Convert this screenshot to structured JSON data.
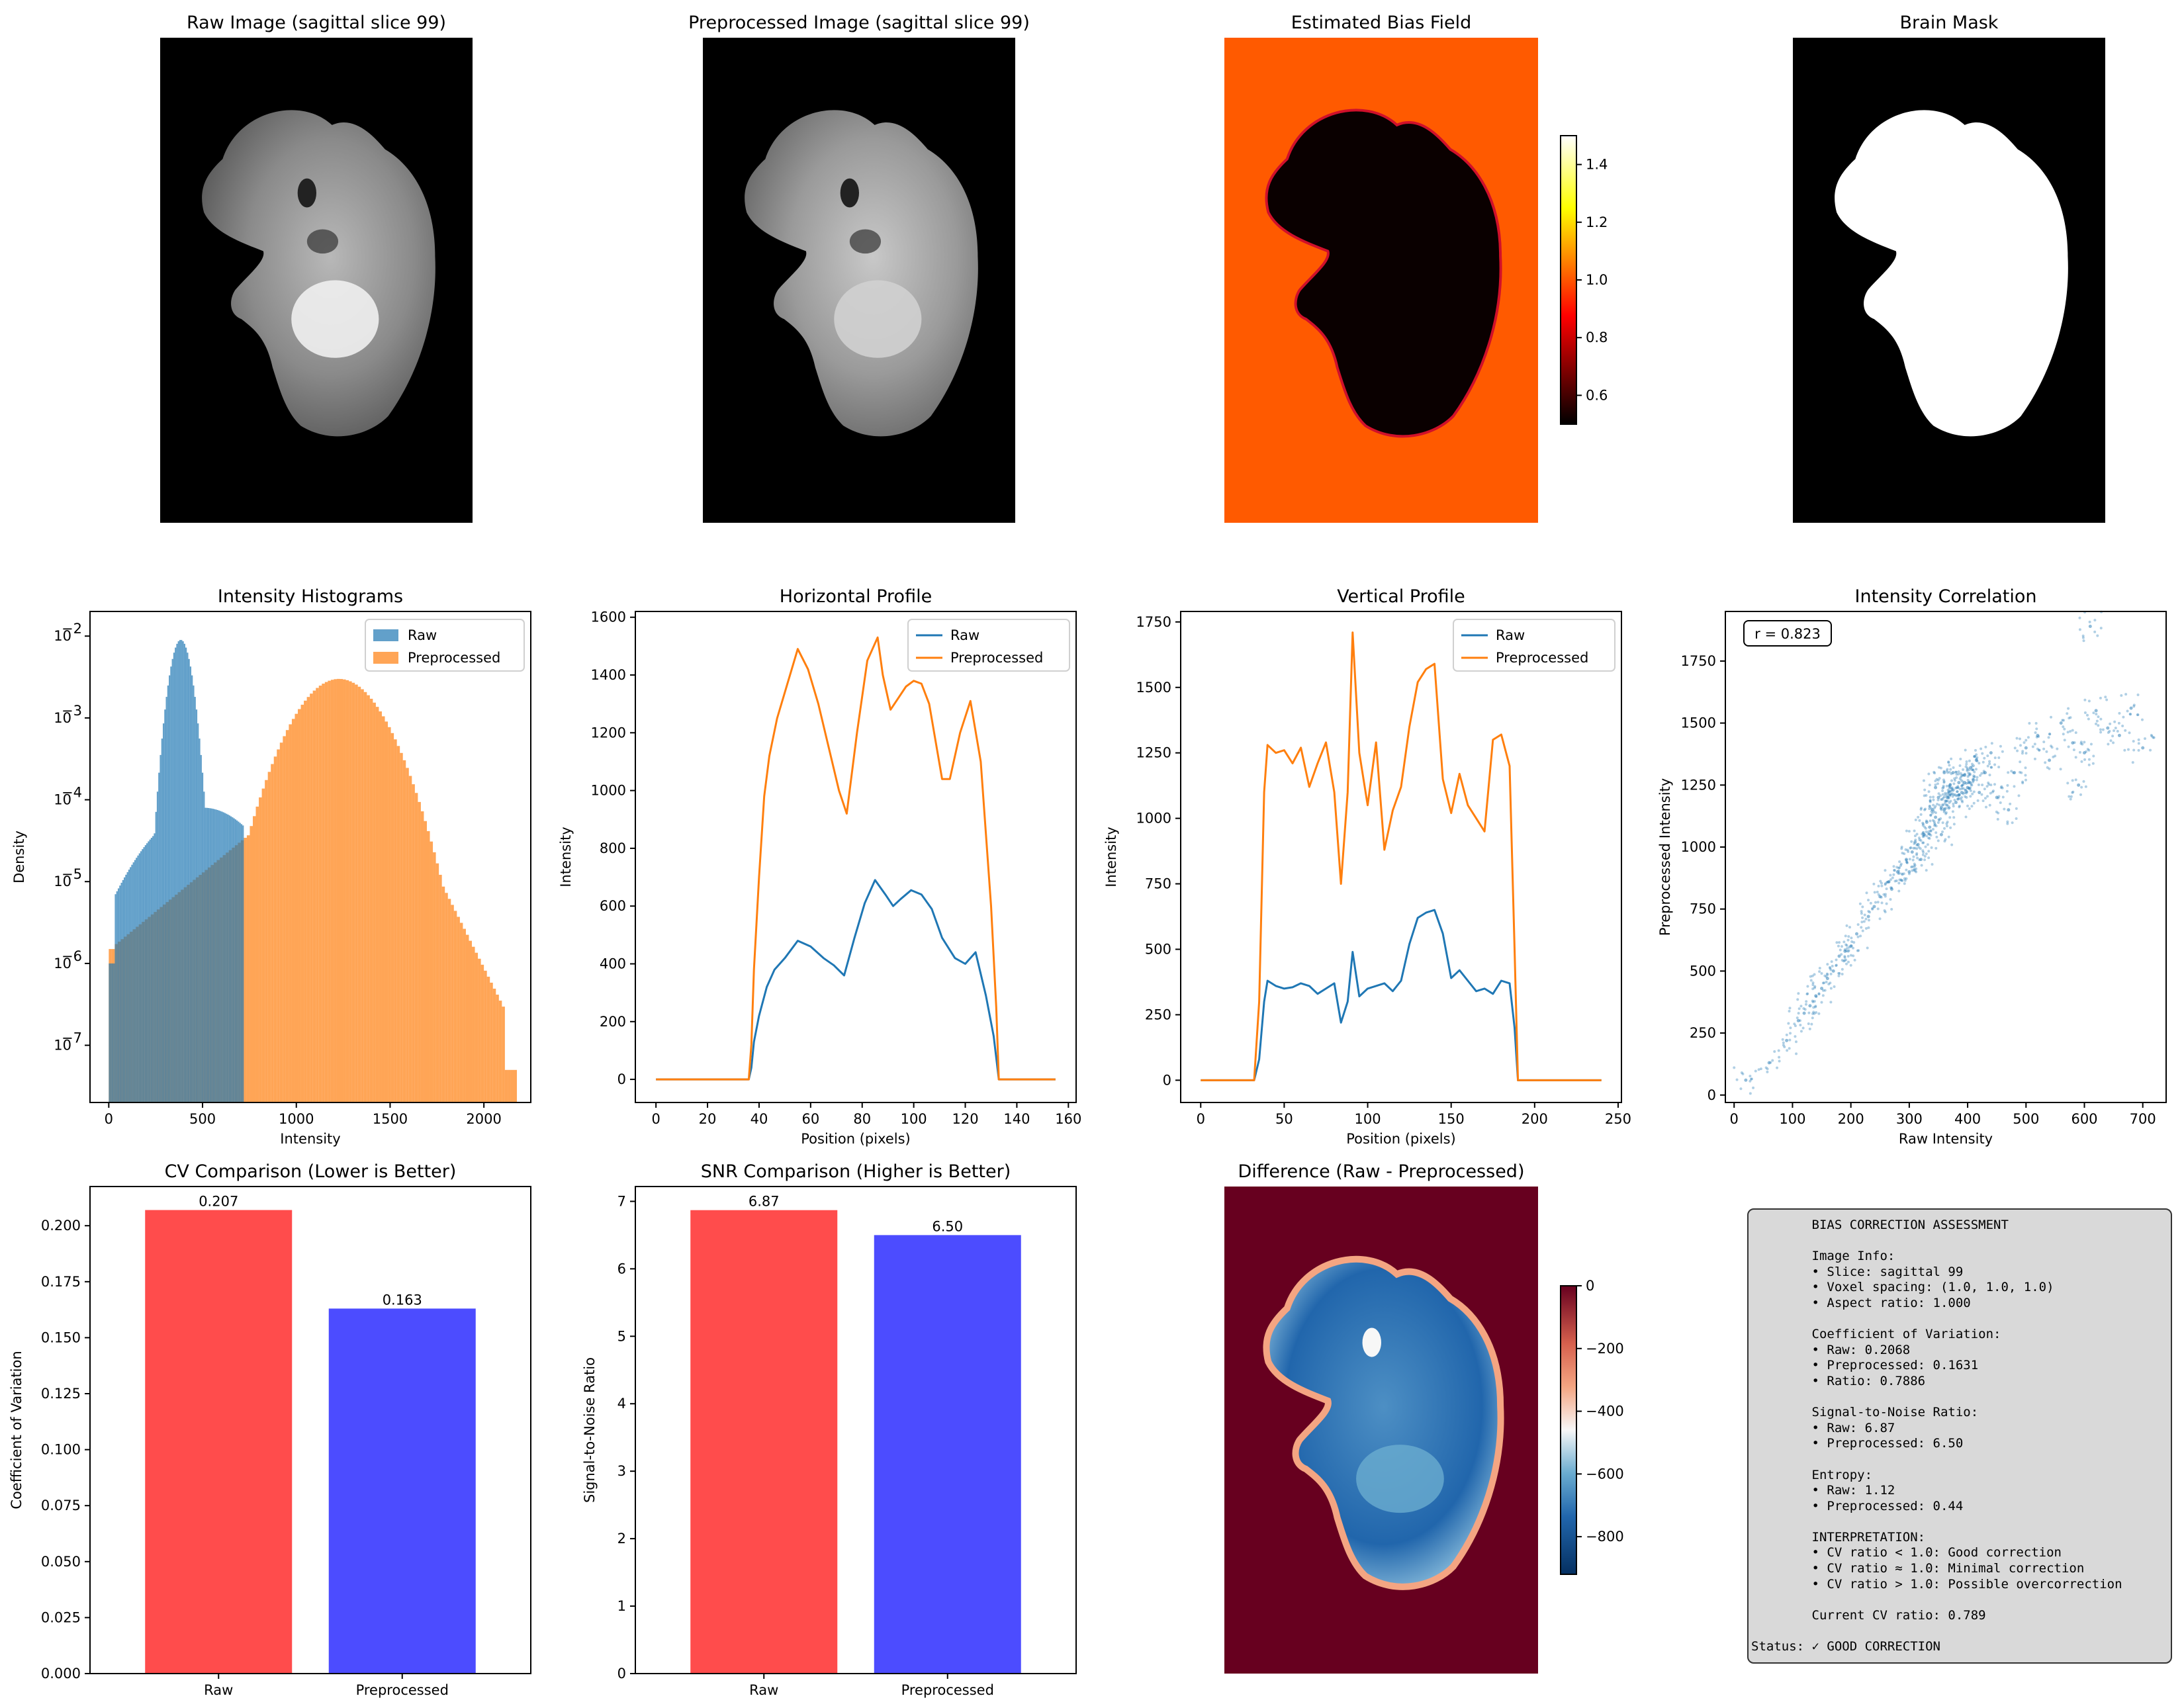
{
  "chart_data": [
    {
      "id": "raw-image",
      "type": "image",
      "title": "Raw Image (sagittal slice 99)"
    },
    {
      "id": "preprocessed-image",
      "type": "image",
      "title": "Preprocessed Image (sagittal slice 99)"
    },
    {
      "id": "bias-field",
      "type": "heatmap",
      "title": "Estimated Bias Field",
      "colormap": "hot",
      "colorbar": {
        "range": [
          0.5,
          1.5
        ],
        "ticks": [
          "0.6",
          "0.8",
          "1.0",
          "1.2",
          "1.4"
        ]
      }
    },
    {
      "id": "brain-mask",
      "type": "image",
      "title": "Brain Mask"
    },
    {
      "id": "histograms",
      "type": "histogram",
      "title": "Intensity Histograms",
      "xlabel": "Intensity",
      "ylabel": "Density",
      "yscale": "log",
      "xlim": [
        -100,
        2250
      ],
      "ylim": [
        2e-08,
        0.02
      ],
      "xticks": [
        "0",
        "500",
        "1000",
        "1500",
        "2000"
      ],
      "yticks": [
        "10",
        "10",
        "10",
        "10",
        "10",
        "10"
      ],
      "ytick_exponents": [
        "−7",
        "−6",
        "−5",
        "−4",
        "−3",
        "−2"
      ],
      "legend": "upper right",
      "series": [
        {
          "name": "Raw",
          "color": "#1f77b4",
          "range": [
            0,
            720
          ],
          "peak_x": 380,
          "peak_density": 0.009
        },
        {
          "name": "Preprocessed",
          "color": "#ff7f0e",
          "range": [
            0,
            2170
          ],
          "peak_x": 1220,
          "peak_density": 0.003
        }
      ]
    },
    {
      "id": "horizontal-profile",
      "type": "line",
      "title": "Horizontal Profile",
      "xlabel": "Position (pixels)",
      "ylabel": "Intensity",
      "xlim": [
        -8,
        163
      ],
      "ylim": [
        -80,
        1620
      ],
      "xticks": [
        "0",
        "20",
        "40",
        "60",
        "80",
        "100",
        "120",
        "140",
        "160"
      ],
      "yticks": [
        "0",
        "200",
        "400",
        "600",
        "800",
        "1000",
        "1200",
        "1400",
        "1600"
      ],
      "legend": "upper right",
      "series": [
        {
          "name": "Raw",
          "color": "#1f77b4",
          "x": [
            0,
            36,
            37,
            38,
            40,
            43,
            46,
            50,
            55,
            60,
            65,
            69,
            73,
            77,
            81,
            85,
            89,
            92,
            95,
            99,
            103,
            107,
            111,
            116,
            120,
            124,
            128,
            131,
            133,
            135,
            155
          ],
          "y": [
            0,
            0,
            40,
            130,
            220,
            320,
            380,
            420,
            480,
            460,
            420,
            395,
            360,
            490,
            610,
            690,
            640,
            600,
            625,
            655,
            640,
            590,
            490,
            420,
            400,
            440,
            290,
            150,
            0,
            0,
            0
          ]
        },
        {
          "name": "Preprocessed",
          "color": "#ff7f0e",
          "x": [
            0,
            36,
            37,
            38,
            40,
            42,
            44,
            47,
            51,
            55,
            59,
            63,
            67,
            71,
            74,
            78,
            82,
            86,
            88,
            91,
            94,
            97,
            100,
            103,
            106,
            111,
            114,
            118,
            122,
            126,
            130,
            132,
            133,
            135,
            155
          ],
          "y": [
            0,
            0,
            120,
            380,
            700,
            980,
            1120,
            1250,
            1370,
            1490,
            1420,
            1300,
            1150,
            1000,
            920,
            1200,
            1450,
            1530,
            1400,
            1280,
            1320,
            1360,
            1380,
            1370,
            1300,
            1040,
            1040,
            1200,
            1310,
            1100,
            600,
            250,
            0,
            0,
            0
          ]
        }
      ]
    },
    {
      "id": "vertical-profile",
      "type": "line",
      "title": "Vertical Profile",
      "xlabel": "Position (pixels)",
      "ylabel": "Intensity",
      "xlim": [
        -12,
        252
      ],
      "ylim": [
        -85,
        1790
      ],
      "xticks": [
        "0",
        "50",
        "100",
        "150",
        "200",
        "250"
      ],
      "yticks": [
        "0",
        "250",
        "500",
        "750",
        "1000",
        "1250",
        "1500",
        "1750"
      ],
      "legend": "upper right",
      "series": [
        {
          "name": "Raw",
          "color": "#1f77b4",
          "x": [
            0,
            32,
            35,
            38,
            40,
            45,
            50,
            55,
            60,
            65,
            70,
            75,
            80,
            84,
            88,
            91,
            95,
            100,
            105,
            110,
            115,
            120,
            125,
            130,
            135,
            140,
            145,
            150,
            155,
            160,
            165,
            170,
            175,
            180,
            185,
            188,
            190,
            240
          ],
          "y": [
            0,
            0,
            80,
            300,
            380,
            360,
            350,
            355,
            370,
            360,
            330,
            350,
            370,
            220,
            300,
            490,
            320,
            350,
            360,
            370,
            340,
            380,
            520,
            620,
            640,
            650,
            560,
            390,
            420,
            380,
            340,
            350,
            330,
            380,
            370,
            200,
            0,
            0
          ]
        },
        {
          "name": "Preprocessed",
          "color": "#ff7f0e",
          "x": [
            0,
            32,
            35,
            38,
            40,
            45,
            50,
            55,
            60,
            65,
            70,
            75,
            80,
            84,
            88,
            91,
            95,
            100,
            105,
            110,
            115,
            120,
            125,
            130,
            135,
            140,
            145,
            150,
            155,
            160,
            165,
            170,
            175,
            180,
            185,
            188,
            190,
            240
          ],
          "y": [
            0,
            0,
            300,
            1100,
            1280,
            1250,
            1260,
            1210,
            1270,
            1120,
            1210,
            1290,
            1100,
            750,
            1100,
            1710,
            1250,
            1050,
            1290,
            880,
            1030,
            1120,
            1350,
            1520,
            1570,
            1590,
            1150,
            1020,
            1170,
            1050,
            1000,
            950,
            1300,
            1320,
            1200,
            500,
            0,
            0
          ]
        }
      ]
    },
    {
      "id": "intensity-correlation",
      "type": "scatter",
      "title": "Intensity Correlation",
      "xlabel": "Raw Intensity",
      "ylabel": "Preprocessed Intensity",
      "xlim": [
        -15,
        740
      ],
      "ylim": [
        -30,
        1950
      ],
      "xticks": [
        "0",
        "100",
        "200",
        "300",
        "400",
        "500",
        "600",
        "700"
      ],
      "yticks": [
        "0",
        "250",
        "500",
        "750",
        "1000",
        "1250",
        "1500",
        "1750"
      ],
      "annotation": "r = 0.823",
      "color": "#1f77b4",
      "points": [
        [
          20,
          60
        ],
        [
          60,
          130
        ],
        [
          90,
          220
        ],
        [
          110,
          300
        ],
        [
          130,
          360
        ],
        [
          150,
          430
        ],
        [
          170,
          500
        ],
        [
          190,
          580
        ],
        [
          210,
          650
        ],
        [
          230,
          720
        ],
        [
          250,
          800
        ],
        [
          265,
          860
        ],
        [
          280,
          900
        ],
        [
          295,
          950
        ],
        [
          305,
          980
        ],
        [
          315,
          1010
        ],
        [
          325,
          1050
        ],
        [
          335,
          1080
        ],
        [
          345,
          1120
        ],
        [
          355,
          1160
        ],
        [
          365,
          1200
        ],
        [
          375,
          1230
        ],
        [
          385,
          1260
        ],
        [
          395,
          1290
        ],
        [
          405,
          1320
        ],
        [
          415,
          1350
        ],
        [
          420,
          1220
        ],
        [
          430,
          1300
        ],
        [
          440,
          1380
        ],
        [
          360,
          1300
        ],
        [
          370,
          1250
        ],
        [
          380,
          1180
        ],
        [
          390,
          1220
        ],
        [
          400,
          1240
        ],
        [
          350,
          1200
        ],
        [
          340,
          1150
        ],
        [
          330,
          1100
        ],
        [
          410,
          1270
        ],
        [
          360,
          1150
        ],
        [
          375,
          1300
        ],
        [
          385,
          1210
        ],
        [
          395,
          1260
        ],
        [
          345,
          1240
        ],
        [
          355,
          1050
        ],
        [
          450,
          1200
        ],
        [
          470,
          1150
        ],
        [
          480,
          1300
        ],
        [
          500,
          1400
        ],
        [
          520,
          1450
        ],
        [
          540,
          1350
        ],
        [
          560,
          1500
        ],
        [
          580,
          1420
        ],
        [
          600,
          1380
        ],
        [
          620,
          1550
        ],
        [
          640,
          1480
        ],
        [
          660,
          1450
        ],
        [
          680,
          1560
        ],
        [
          700,
          1400
        ],
        [
          610,
          1890
        ],
        [
          590,
          1250
        ],
        [
          300,
          900
        ],
        [
          310,
          1020
        ],
        [
          320,
          950
        ],
        [
          270,
          830
        ],
        [
          240,
          760
        ],
        [
          200,
          600
        ],
        [
          180,
          560
        ],
        [
          160,
          470
        ],
        [
          140,
          400
        ],
        [
          120,
          330
        ]
      ]
    },
    {
      "id": "cv-comparison",
      "type": "bar",
      "title": "CV Comparison (Lower is Better)",
      "ylabel": "Coefficient of Variation",
      "categories": [
        "Raw",
        "Preprocessed"
      ],
      "values": [
        0.207,
        0.163
      ],
      "labels": [
        "0.207",
        "0.163"
      ],
      "colors": [
        "#ff4c4c",
        "#4c4cff"
      ],
      "ylim": [
        0,
        0.2175
      ],
      "yticks": [
        "0.000",
        "0.025",
        "0.050",
        "0.075",
        "0.100",
        "0.125",
        "0.150",
        "0.175",
        "0.200"
      ]
    },
    {
      "id": "snr-comparison",
      "type": "bar",
      "title": "SNR Comparison (Higher is Better)",
      "ylabel": "Signal-to-Noise Ratio",
      "categories": [
        "Raw",
        "Preprocessed"
      ],
      "values": [
        6.87,
        6.5
      ],
      "labels": [
        "6.87",
        "6.50"
      ],
      "colors": [
        "#ff4c4c",
        "#4c4cff"
      ],
      "ylim": [
        0,
        7.22
      ],
      "yticks": [
        "0",
        "1",
        "2",
        "3",
        "4",
        "5",
        "6",
        "7"
      ]
    },
    {
      "id": "difference",
      "type": "heatmap",
      "title": "Difference (Raw - Preprocessed)",
      "colormap": "RdBu_r",
      "colorbar": {
        "range": [
          -920,
          0
        ],
        "ticks": [
          "−800",
          "−600",
          "−400",
          "−200",
          "0"
        ]
      }
    }
  ],
  "assessment": {
    "lines": [
      "        BIAS CORRECTION ASSESSMENT",
      "",
      "        Image Info:",
      "        • Slice: sagittal 99",
      "        • Voxel spacing: (1.0, 1.0, 1.0)",
      "        • Aspect ratio: 1.000",
      "",
      "        Coefficient of Variation:",
      "        • Raw: 0.2068",
      "        • Preprocessed: 0.1631",
      "        • Ratio: 0.7886",
      "",
      "        Signal-to-Noise Ratio:",
      "        • Raw: 6.87",
      "        • Preprocessed: 6.50",
      "",
      "        Entropy:",
      "        • Raw: 1.12",
      "        • Preprocessed: 0.44",
      "",
      "        INTERPRETATION:",
      "        • CV ratio < 1.0: Good correction",
      "        • CV ratio ≈ 1.0: Minimal correction",
      "        • CV ratio > 1.0: Possible overcorrection",
      "",
      "        Current CV ratio: 0.789",
      "",
      "Status: ✓ GOOD CORRECTION"
    ]
  }
}
